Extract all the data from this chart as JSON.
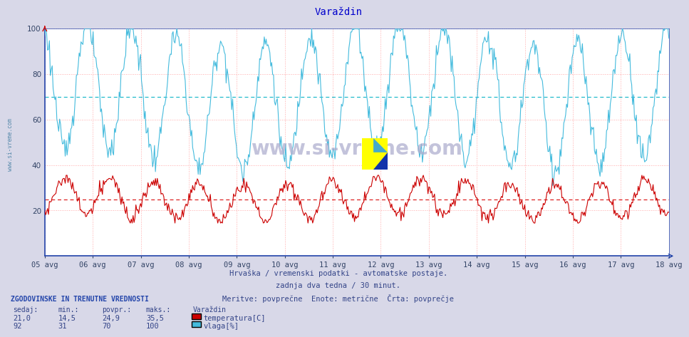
{
  "title": "Varaždin",
  "title_color": "#0000cc",
  "background_color": "#d8d8e8",
  "plot_bg_color": "#ffffff",
  "grid_color": "#ffaaaa",
  "avg_line_humidity": 70,
  "avg_line_temp": 24.9,
  "x_tick_labels": [
    "05 avg",
    "06 avg",
    "07 avg",
    "08 avg",
    "09 avg",
    "10 avg",
    "11 avg",
    "12 avg",
    "13 avg",
    "14 avg",
    "15 avg",
    "16 avg",
    "17 avg",
    "18 avg"
  ],
  "ylim": [
    0,
    100
  ],
  "yticks": [
    20,
    40,
    60,
    80,
    100
  ],
  "temp_color": "#cc0000",
  "humidity_color": "#44bbdd",
  "avg_temp_color": "#dd2222",
  "avg_humidity_color": "#22bbcc",
  "subtitle1": "Hrvaška / vremenski podatki - avtomatske postaje.",
  "subtitle2": "zadnja dva tedna / 30 minut.",
  "subtitle3": "Meritve: povprečne  Enote: metrične  Črta: povprečje",
  "footer_title": "ZGODOVINSKE IN TRENUTNE VREDNOSTI",
  "footer_cols": [
    "sedaj:",
    "min.:",
    "povpr.:",
    "maks.:"
  ],
  "footer_row1": [
    "21,0",
    "14,5",
    "24,9",
    "35,5"
  ],
  "footer_row2": [
    "92",
    "31",
    "70",
    "100"
  ],
  "footer_location": "Varaždin",
  "footer_temp_label": "temperatura[C]",
  "footer_humidity_label": "vlaga[%]",
  "watermark": "www.si-vreme.com",
  "watermark_color": "#aaaacc",
  "sidebar_text": "www.si-vreme.com",
  "sidebar_color": "#5588aa",
  "n_points": 672,
  "days": 14,
  "temp_avg": 24.9,
  "hum_avg": 70
}
